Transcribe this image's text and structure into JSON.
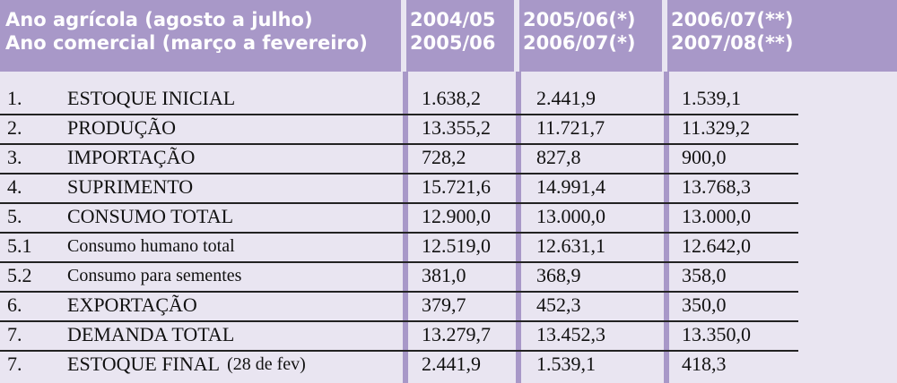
{
  "header": {
    "rows": [
      [
        "Ano agrícola (agosto a julho)",
        "2004/05",
        "2005/06(*)",
        "2006/07(**)"
      ],
      [
        "Ano comercial (março a fevereiro)",
        "2005/06",
        "2006/07(*)",
        "2007/08(**)"
      ]
    ]
  },
  "table": {
    "rows": [
      [
        "1.",
        "ESTOQUE INICIAL",
        "1.638,2",
        "2.441,9",
        "1.539,1"
      ],
      [
        "2.",
        "PRODUÇÃO",
        "13.355,2",
        "11.721,7",
        "11.329,2"
      ],
      [
        "3.",
        "IMPORTAÇÃO",
        "728,2",
        "827,8",
        "900,0"
      ],
      [
        "4.",
        "SUPRIMENTO",
        "15.721,6",
        "14.991,4",
        "13.768,3"
      ],
      [
        "5.",
        "CONSUMO TOTAL",
        "12.900,0",
        "13.000,0",
        "13.000,0"
      ],
      [
        "5.1",
        "Consumo humano total",
        "12.519,0",
        "12.631,1",
        "12.642,0"
      ],
      [
        "5.2",
        "Consumo para sementes",
        "381,0",
        "368,9",
        "358,0"
      ],
      [
        "6.",
        "EXPORTAÇÃO",
        "379,7",
        "452,3",
        "350,0"
      ],
      [
        "7.",
        "DEMANDA TOTAL",
        "13.279,7",
        "13.452,3",
        "13.350,0"
      ],
      [
        "7.",
        "ESTOQUE FINAL",
        "2.441,9",
        "1.539,1",
        "418,3"
      ]
    ],
    "note": "(28 de fev)"
  }
}
